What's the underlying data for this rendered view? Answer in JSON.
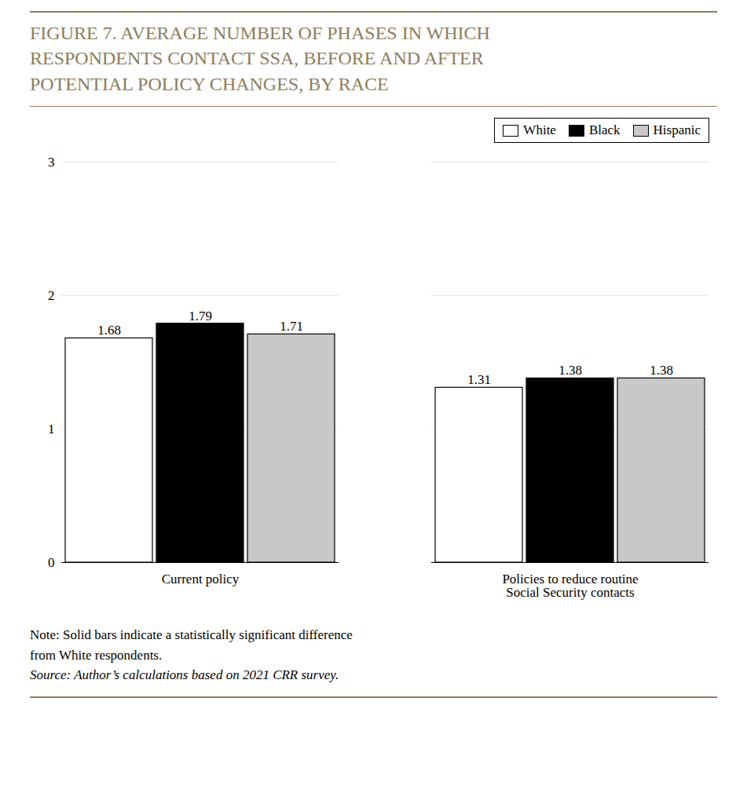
{
  "chart_data": {
    "type": "bar",
    "title": "FIGURE 7. AVERAGE NUMBER OF PHASES IN WHICH\nRESPONDENTS CONTACT SSA, BEFORE AND AFTER\nPOTENTIAL POLICY CHANGES, BY RACE",
    "categories": [
      "Current policy",
      "Policies to reduce routine\nSocial Security contacts"
    ],
    "series": [
      {
        "name": "White",
        "color": "#ffffff",
        "values": [
          1.68,
          1.31
        ]
      },
      {
        "name": "Black",
        "color": "#000000",
        "values": [
          1.79,
          1.38
        ]
      },
      {
        "name": "Hispanic",
        "color": "#c8c8c8",
        "values": [
          1.71,
          1.38
        ]
      }
    ],
    "ylim": [
      0,
      3
    ],
    "yticks": [
      0,
      1,
      2,
      3
    ],
    "grid": true,
    "legend": "top-right",
    "data_labels": true,
    "annotations": [
      "Note: Solid bars indicate a statistically significant difference",
      "from White respondents.",
      "Source: Author’s calculations based on 2021 CRR survey."
    ]
  }
}
